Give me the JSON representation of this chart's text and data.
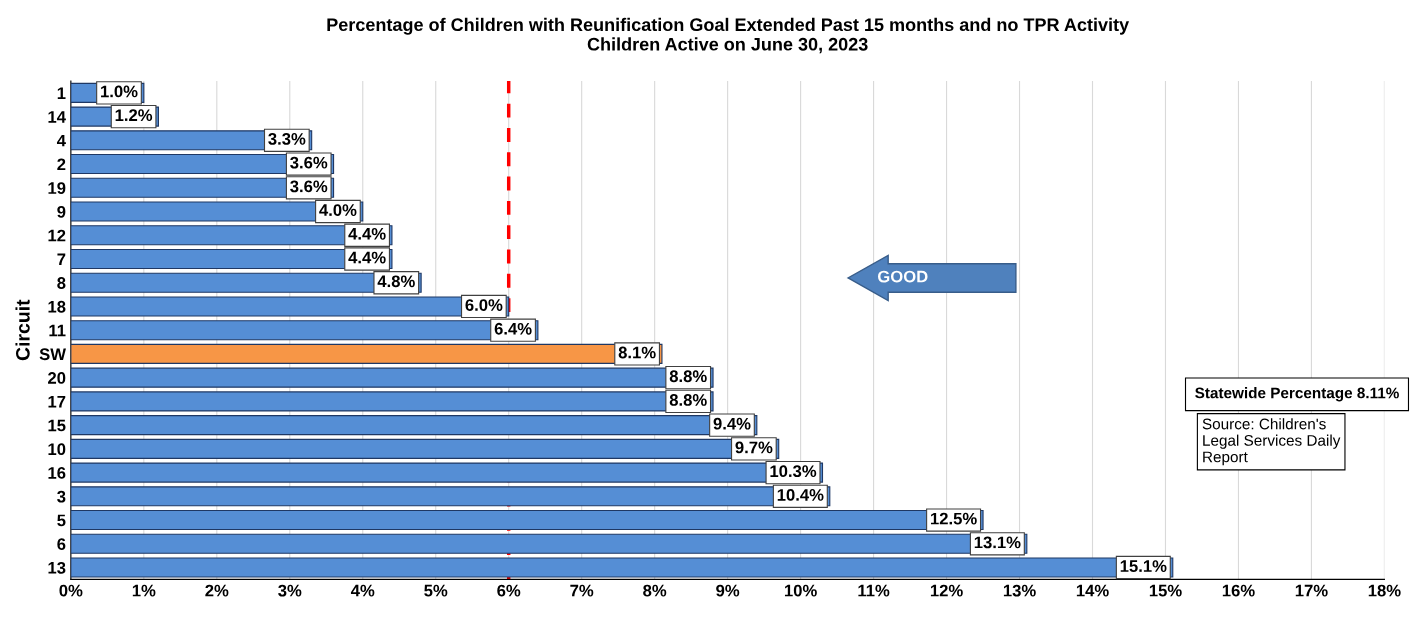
{
  "chart_data": {
    "type": "bar",
    "orientation": "horizontal",
    "title": "Percentage of Children with Reunification Goal Extended Past 15 months and no TPR Activity\nChildren Active on June 30, 2023",
    "ylabel": "Circuit",
    "categories": [
      "1",
      "14",
      "4",
      "2",
      "19",
      "9",
      "12",
      "7",
      "8",
      "18",
      "11",
      "SW",
      "20",
      "17",
      "15",
      "10",
      "16",
      "3",
      "5",
      "6",
      "13"
    ],
    "values": [
      1.0,
      1.2,
      3.3,
      3.6,
      3.6,
      4.0,
      4.4,
      4.4,
      4.8,
      6.0,
      6.4,
      8.1,
      8.8,
      8.8,
      9.4,
      9.7,
      10.3,
      10.4,
      12.5,
      13.1,
      15.1
    ],
    "value_labels": [
      "1.0%",
      "1.2%",
      "3.3%",
      "3.6%",
      "3.6%",
      "4.0%",
      "4.4%",
      "4.4%",
      "4.8%",
      "6.0%",
      "6.4%",
      "8.1%",
      "8.8%",
      "8.8%",
      "9.4%",
      "9.7%",
      "10.3%",
      "10.4%",
      "12.5%",
      "13.1%",
      "15.1%"
    ],
    "colors": [
      "#558ed5",
      "#558ed5",
      "#558ed5",
      "#558ed5",
      "#558ed5",
      "#558ed5",
      "#558ed5",
      "#558ed5",
      "#558ed5",
      "#558ed5",
      "#558ed5",
      "#f79646",
      "#558ed5",
      "#558ed5",
      "#558ed5",
      "#558ed5",
      "#558ed5",
      "#558ed5",
      "#558ed5",
      "#558ed5",
      "#558ed5"
    ],
    "xlim": [
      0,
      18
    ],
    "xticks": [
      {
        "value": 0,
        "label": "0%"
      },
      {
        "value": 1,
        "label": "1%"
      },
      {
        "value": 2,
        "label": "2%"
      },
      {
        "value": 3,
        "label": "3%"
      },
      {
        "value": 4,
        "label": "4%"
      },
      {
        "value": 5,
        "label": "5%"
      },
      {
        "value": 6,
        "label": "6%"
      },
      {
        "value": 7,
        "label": "7%"
      },
      {
        "value": 8,
        "label": "8%"
      },
      {
        "value": 9,
        "label": "9%"
      },
      {
        "value": 10,
        "label": "10%"
      },
      {
        "value": 11,
        "label": "11%"
      },
      {
        "value": 12,
        "label": "12%"
      },
      {
        "value": 13,
        "label": "13%"
      },
      {
        "value": 14,
        "label": "14%"
      },
      {
        "value": 15,
        "label": "15%"
      },
      {
        "value": 16,
        "label": "16%"
      },
      {
        "value": 17,
        "label": "17%"
      },
      {
        "value": 18,
        "label": "18%"
      }
    ],
    "grid": "x",
    "ref_lines": [
      {
        "axis": "x",
        "value": 6,
        "color": "#ff0000",
        "line_style": "dashed"
      }
    ],
    "annotations": [
      "GOOD",
      "Statewide Percentage 8.11%",
      "Source: Children's\nLegal Services Daily\nReport"
    ]
  }
}
